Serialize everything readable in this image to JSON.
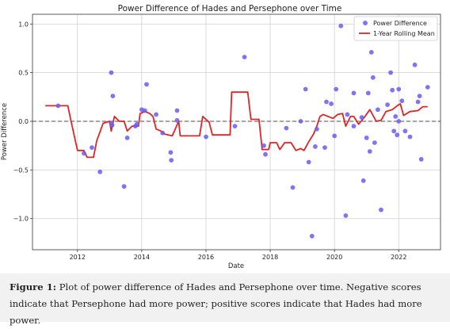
{
  "chart_data": {
    "type": "scatter",
    "title": "Power Difference of Hades and Persephone over Time",
    "xlabel": "Date",
    "ylabel": "Power Difference",
    "xlim": [
      2010.6,
      2023.3
    ],
    "ylim": [
      -1.32,
      1.1
    ],
    "x_ticks": [
      2012,
      2014,
      2016,
      2018,
      2020,
      2022
    ],
    "y_ticks": [
      -1.0,
      -0.5,
      0.0,
      0.5,
      1.0
    ],
    "y_tick_labels": [
      "−1.0",
      "−0.5",
      "0.0",
      "0.5",
      "1.0"
    ],
    "grid": true,
    "legend_position": "top-right",
    "reference_line": {
      "y": 0.0,
      "style": "dashed",
      "color": "#707070"
    },
    "series": [
      {
        "name": "Power Difference",
        "kind": "scatter",
        "color": "#6b5cf2",
        "points": [
          [
            2011.4,
            0.16
          ],
          [
            2012.2,
            -0.33
          ],
          [
            2012.45,
            -0.27
          ],
          [
            2012.7,
            -0.52
          ],
          [
            2013.05,
            0.5
          ],
          [
            2013.1,
            0.26
          ],
          [
            2013.05,
            -0.02
          ],
          [
            2013.08,
            -0.04
          ],
          [
            2013.45,
            -0.67
          ],
          [
            2013.55,
            -0.17
          ],
          [
            2013.8,
            -0.05
          ],
          [
            2013.85,
            -0.03
          ],
          [
            2014.0,
            0.12
          ],
          [
            2014.1,
            0.11
          ],
          [
            2014.15,
            0.38
          ],
          [
            2014.45,
            0.07
          ],
          [
            2014.65,
            -0.12
          ],
          [
            2014.9,
            -0.32
          ],
          [
            2014.92,
            -0.4
          ],
          [
            2015.1,
            0.11
          ],
          [
            2015.1,
            0.01
          ],
          [
            2016.0,
            -0.16
          ],
          [
            2016.9,
            -0.05
          ],
          [
            2017.2,
            0.66
          ],
          [
            2017.8,
            -0.25
          ],
          [
            2017.85,
            -0.34
          ],
          [
            2018.5,
            -0.07
          ],
          [
            2018.7,
            -0.68
          ],
          [
            2018.95,
            0.0
          ],
          [
            2019.1,
            0.33
          ],
          [
            2019.2,
            -0.42
          ],
          [
            2019.3,
            -1.18
          ],
          [
            2019.4,
            -0.26
          ],
          [
            2019.45,
            -0.08
          ],
          [
            2019.7,
            -0.27
          ],
          [
            2019.75,
            0.2
          ],
          [
            2019.9,
            0.18
          ],
          [
            2020.0,
            -0.15
          ],
          [
            2020.05,
            0.33
          ],
          [
            2020.2,
            0.98
          ],
          [
            2020.35,
            -0.97
          ],
          [
            2020.4,
            0.07
          ],
          [
            2020.6,
            -0.05
          ],
          [
            2020.6,
            0.29
          ],
          [
            2020.85,
            0.04
          ],
          [
            2020.9,
            -0.61
          ],
          [
            2021.0,
            -0.17
          ],
          [
            2021.05,
            0.29
          ],
          [
            2021.1,
            -0.31
          ],
          [
            2021.15,
            0.71
          ],
          [
            2021.2,
            0.45
          ],
          [
            2021.25,
            -0.22
          ],
          [
            2021.35,
            0.12
          ],
          [
            2021.45,
            -0.91
          ],
          [
            2021.65,
            0.17
          ],
          [
            2021.75,
            0.5
          ],
          [
            2021.8,
            0.32
          ],
          [
            2021.85,
            -0.1
          ],
          [
            2021.95,
            -0.14
          ],
          [
            2022.0,
            0.33
          ],
          [
            2022.1,
            0.21
          ],
          [
            2022.2,
            -0.1
          ],
          [
            2022.35,
            -0.16
          ],
          [
            2022.5,
            0.58
          ],
          [
            2022.6,
            0.2
          ],
          [
            2022.65,
            0.26
          ],
          [
            2022.7,
            -0.39
          ],
          [
            2022.9,
            0.35
          ],
          [
            2021.9,
            0.05
          ],
          [
            2022.0,
            0.0
          ]
        ]
      },
      {
        "name": "1-Year Rolling Mean",
        "kind": "line",
        "color": "#e02424",
        "points": [
          [
            2011.0,
            0.16
          ],
          [
            2011.7,
            0.16
          ],
          [
            2011.8,
            0.0
          ],
          [
            2012.0,
            -0.3
          ],
          [
            2012.2,
            -0.3
          ],
          [
            2012.3,
            -0.37
          ],
          [
            2012.5,
            -0.37
          ],
          [
            2012.6,
            -0.2
          ],
          [
            2012.8,
            -0.02
          ],
          [
            2013.0,
            0.0
          ],
          [
            2013.05,
            -0.1
          ],
          [
            2013.15,
            0.05
          ],
          [
            2013.3,
            0.0
          ],
          [
            2013.45,
            0.0
          ],
          [
            2013.55,
            -0.1
          ],
          [
            2013.7,
            -0.05
          ],
          [
            2013.9,
            -0.05
          ],
          [
            2013.95,
            0.08
          ],
          [
            2014.1,
            0.1
          ],
          [
            2014.25,
            0.08
          ],
          [
            2014.35,
            0.05
          ],
          [
            2014.45,
            -0.08
          ],
          [
            2014.6,
            -0.1
          ],
          [
            2014.7,
            -0.13
          ],
          [
            2014.95,
            -0.15
          ],
          [
            2015.15,
            0.0
          ],
          [
            2015.2,
            -0.15
          ],
          [
            2015.8,
            -0.15
          ],
          [
            2015.9,
            0.05
          ],
          [
            2016.1,
            -0.01
          ],
          [
            2016.2,
            -0.14
          ],
          [
            2016.75,
            -0.14
          ],
          [
            2016.8,
            0.3
          ],
          [
            2017.3,
            0.3
          ],
          [
            2017.4,
            0.02
          ],
          [
            2017.65,
            0.02
          ],
          [
            2017.75,
            -0.29
          ],
          [
            2017.95,
            -0.29
          ],
          [
            2018.0,
            -0.22
          ],
          [
            2018.2,
            -0.22
          ],
          [
            2018.3,
            -0.29
          ],
          [
            2018.45,
            -0.22
          ],
          [
            2018.65,
            -0.22
          ],
          [
            2018.8,
            -0.3
          ],
          [
            2018.95,
            -0.28
          ],
          [
            2019.05,
            -0.3
          ],
          [
            2019.2,
            -0.21
          ],
          [
            2019.35,
            -0.13
          ],
          [
            2019.45,
            -0.05
          ],
          [
            2019.55,
            0.05
          ],
          [
            2019.65,
            0.07
          ],
          [
            2019.8,
            0.05
          ],
          [
            2019.95,
            0.03
          ],
          [
            2020.1,
            0.07
          ],
          [
            2020.25,
            0.08
          ],
          [
            2020.35,
            -0.05
          ],
          [
            2020.5,
            0.05
          ],
          [
            2020.6,
            0.05
          ],
          [
            2020.75,
            -0.03
          ],
          [
            2020.95,
            0.05
          ],
          [
            2021.1,
            0.12
          ],
          [
            2021.3,
            0.0
          ],
          [
            2021.45,
            0.01
          ],
          [
            2021.6,
            0.1
          ],
          [
            2021.8,
            0.12
          ],
          [
            2021.95,
            0.16
          ],
          [
            2022.05,
            0.18
          ],
          [
            2022.15,
            0.06
          ],
          [
            2022.35,
            0.1
          ],
          [
            2022.6,
            0.11
          ],
          [
            2022.75,
            0.15
          ],
          [
            2022.9,
            0.15
          ]
        ]
      }
    ]
  },
  "caption": {
    "label": "Figure 1:",
    "text": " Plot of power difference of Hades and Persephone over time. Negative scores indicate that Persephone had more power; positive scores indicate that Hades had more power."
  }
}
